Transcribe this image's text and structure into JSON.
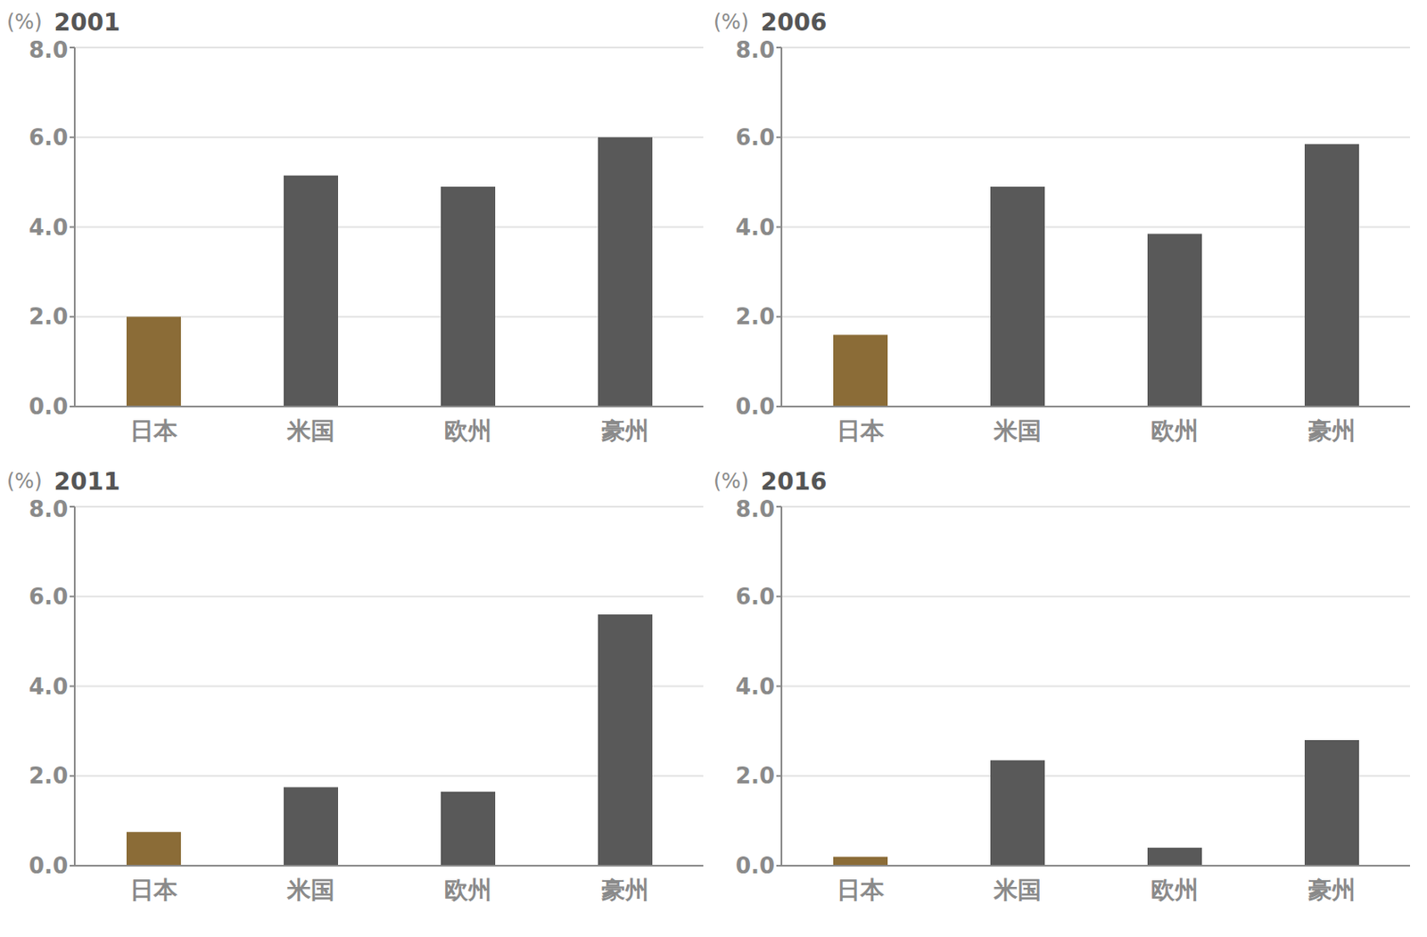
{
  "chart_data": [
    {
      "type": "bar",
      "title": "2001",
      "ylabel": "(%)",
      "categories": [
        "日本",
        "米国",
        "欧州",
        "豪州"
      ],
      "values": [
        2.0,
        5.15,
        4.9,
        6.0
      ],
      "colors": [
        "#8b6c37",
        "#595959",
        "#595959",
        "#595959"
      ],
      "ylim": [
        0,
        8
      ],
      "yticks": [
        {
          "value": 0,
          "label": "0.0"
        },
        {
          "value": 2,
          "label": "2.0"
        },
        {
          "value": 4,
          "label": "4.0"
        },
        {
          "value": 6,
          "label": "6.0"
        },
        {
          "value": 8,
          "label": "8.0"
        }
      ],
      "grid": true
    },
    {
      "type": "bar",
      "title": "2006",
      "ylabel": "(%)",
      "categories": [
        "日本",
        "米国",
        "欧州",
        "豪州"
      ],
      "values": [
        1.6,
        4.9,
        3.85,
        5.85
      ],
      "colors": [
        "#8b6c37",
        "#595959",
        "#595959",
        "#595959"
      ],
      "ylim": [
        0,
        8
      ],
      "yticks": [
        {
          "value": 0,
          "label": "0.0"
        },
        {
          "value": 2,
          "label": "2.0"
        },
        {
          "value": 4,
          "label": "4.0"
        },
        {
          "value": 6,
          "label": "6.0"
        },
        {
          "value": 8,
          "label": "8.0"
        }
      ],
      "grid": true
    },
    {
      "type": "bar",
      "title": "2011",
      "ylabel": "(%)",
      "categories": [
        "日本",
        "米国",
        "欧州",
        "豪州"
      ],
      "values": [
        0.75,
        1.75,
        1.65,
        5.6
      ],
      "colors": [
        "#8b6c37",
        "#595959",
        "#595959",
        "#595959"
      ],
      "ylim": [
        0,
        8
      ],
      "yticks": [
        {
          "value": 0,
          "label": "0.0"
        },
        {
          "value": 2,
          "label": "2.0"
        },
        {
          "value": 4,
          "label": "4.0"
        },
        {
          "value": 6,
          "label": "6.0"
        },
        {
          "value": 8,
          "label": "8.0"
        }
      ],
      "grid": true
    },
    {
      "type": "bar",
      "title": "2016",
      "ylabel": "(%)",
      "categories": [
        "日本",
        "米国",
        "欧州",
        "豪州"
      ],
      "values": [
        0.2,
        2.35,
        0.4,
        2.8
      ],
      "colors": [
        "#8b6c37",
        "#595959",
        "#595959",
        "#595959"
      ],
      "ylim": [
        0,
        8
      ],
      "yticks": [
        {
          "value": 0,
          "label": "0.0"
        },
        {
          "value": 2,
          "label": "2.0"
        },
        {
          "value": 4,
          "label": "4.0"
        },
        {
          "value": 6,
          "label": "6.0"
        },
        {
          "value": 8,
          "label": "8.0"
        }
      ],
      "grid": true
    }
  ]
}
